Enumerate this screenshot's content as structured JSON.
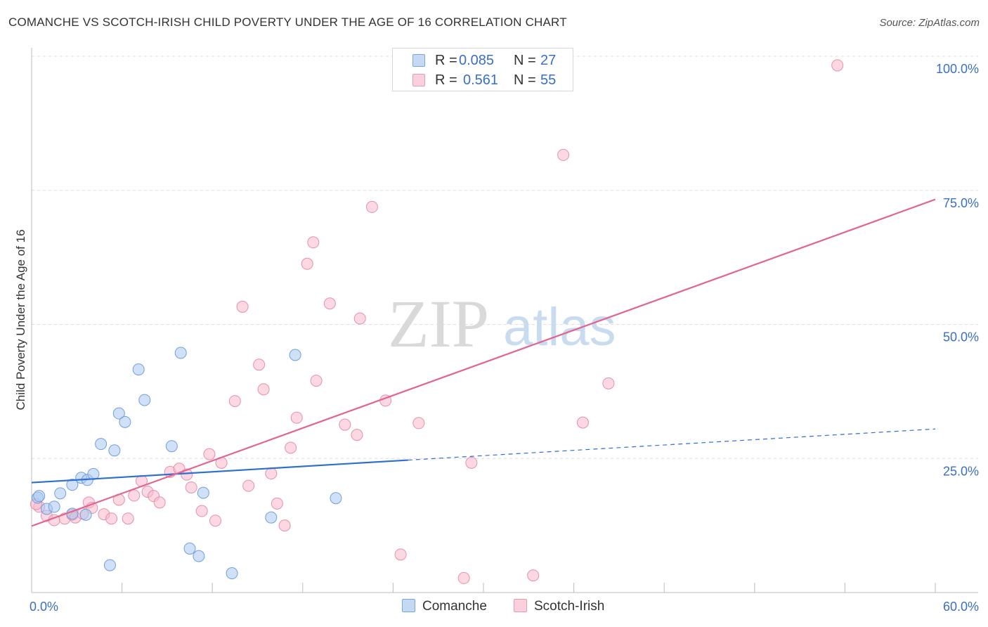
{
  "header": {
    "title": "COMANCHE VS SCOTCH-IRISH CHILD POVERTY UNDER THE AGE OF 16 CORRELATION CHART",
    "source": "Source: ZipAtlas.com"
  },
  "watermark": {
    "zip": "ZIP",
    "atlas": "atlas"
  },
  "legend": {
    "rows": [
      {
        "r_label": "R =",
        "r_value": "0.085",
        "n_label": "N =",
        "n_value": "27",
        "color": "#a9c8f0"
      },
      {
        "r_label": "R =",
        "r_value": "0.561",
        "n_label": "N =",
        "n_value": "55",
        "color": "#f7b8cb"
      }
    ]
  },
  "bottom_legend": {
    "items": [
      {
        "label": "Comanche",
        "color": "#a9c8f0"
      },
      {
        "label": "Scotch-Irish",
        "color": "#f7b8cb"
      }
    ]
  },
  "chart_data": {
    "type": "scatter",
    "title": "COMANCHE VS SCOTCH-IRISH CHILD POVERTY UNDER THE AGE OF 16 CORRELATION CHART",
    "xlabel": "",
    "ylabel": "Child Poverty Under the Age of 16",
    "xlim": [
      0,
      60
    ],
    "ylim": [
      0,
      100
    ],
    "x_tick_labels": {
      "min": "0.0%",
      "max": "60.0%"
    },
    "y_ticks": [
      {
        "value": 25,
        "label": "25.0%"
      },
      {
        "value": 50,
        "label": "50.0%"
      },
      {
        "value": 75,
        "label": "75.0%"
      },
      {
        "value": 100,
        "label": "100.0%"
      }
    ],
    "grid": true,
    "series": [
      {
        "name": "Comanche",
        "color": "#a9c8f0",
        "stroke": "#6f9fdc",
        "line_color": "#2f6fcf",
        "trend": {
          "x0": 0,
          "y0": 20.5,
          "x1": 25.0,
          "y1": 24.7,
          "x_ext": 60,
          "y_ext": 30.5
        },
        "points": [
          [
            0.4,
            17.7
          ],
          [
            1.0,
            15.6
          ],
          [
            1.9,
            18.5
          ],
          [
            2.7,
            14.7
          ],
          [
            2.7,
            20.1
          ],
          [
            3.3,
            21.4
          ],
          [
            3.6,
            14.5
          ],
          [
            3.7,
            21.0
          ],
          [
            4.1,
            22.1
          ],
          [
            4.6,
            27.7
          ],
          [
            5.2,
            5.1
          ],
          [
            5.5,
            26.5
          ],
          [
            5.8,
            33.4
          ],
          [
            6.2,
            31.8
          ],
          [
            7.1,
            41.6
          ],
          [
            7.5,
            35.9
          ],
          [
            9.3,
            27.3
          ],
          [
            9.9,
            44.7
          ],
          [
            10.5,
            8.2
          ],
          [
            11.1,
            6.8
          ],
          [
            11.4,
            18.6
          ],
          [
            13.3,
            3.6
          ],
          [
            15.9,
            14.0
          ],
          [
            17.5,
            44.3
          ],
          [
            20.2,
            17.6
          ],
          [
            0.5,
            18.0
          ],
          [
            1.5,
            16.0
          ]
        ]
      },
      {
        "name": "Scotch-Irish",
        "color": "#f7b8cb",
        "stroke": "#e690ac",
        "line_color": "#e0668f",
        "trend": {
          "x0": 0,
          "y0": 12.4,
          "x1": 60,
          "y1": 73.3
        },
        "points": [
          [
            0.5,
            16.0
          ],
          [
            1.0,
            14.3
          ],
          [
            1.5,
            13.5
          ],
          [
            2.2,
            13.8
          ],
          [
            2.7,
            14.5
          ],
          [
            2.9,
            14.0
          ],
          [
            3.4,
            14.7
          ],
          [
            3.8,
            16.8
          ],
          [
            4.0,
            15.8
          ],
          [
            4.8,
            14.6
          ],
          [
            5.3,
            13.8
          ],
          [
            5.8,
            17.3
          ],
          [
            6.4,
            13.8
          ],
          [
            6.8,
            18.1
          ],
          [
            7.3,
            20.8
          ],
          [
            7.7,
            18.8
          ],
          [
            8.1,
            18.0
          ],
          [
            8.5,
            16.8
          ],
          [
            9.2,
            22.5
          ],
          [
            9.8,
            23.1
          ],
          [
            10.3,
            22.0
          ],
          [
            10.6,
            19.6
          ],
          [
            11.3,
            15.2
          ],
          [
            11.8,
            25.8
          ],
          [
            12.2,
            13.4
          ],
          [
            12.6,
            24.2
          ],
          [
            13.5,
            35.7
          ],
          [
            14.0,
            53.3
          ],
          [
            14.4,
            19.9
          ],
          [
            15.1,
            42.5
          ],
          [
            15.4,
            37.9
          ],
          [
            15.9,
            22.2
          ],
          [
            16.3,
            16.6
          ],
          [
            16.8,
            12.5
          ],
          [
            17.2,
            27.0
          ],
          [
            17.6,
            32.6
          ],
          [
            18.3,
            61.3
          ],
          [
            18.7,
            65.3
          ],
          [
            18.9,
            39.5
          ],
          [
            19.8,
            53.9
          ],
          [
            20.8,
            31.3
          ],
          [
            21.6,
            29.4
          ],
          [
            21.8,
            51.1
          ],
          [
            22.6,
            71.9
          ],
          [
            23.5,
            35.8
          ],
          [
            24.5,
            7.1
          ],
          [
            25.7,
            31.6
          ],
          [
            28.7,
            2.7
          ],
          [
            29.2,
            24.2
          ],
          [
            33.3,
            3.2
          ],
          [
            35.3,
            81.6
          ],
          [
            36.6,
            31.7
          ],
          [
            38.3,
            39.0
          ],
          [
            53.5,
            98.3
          ],
          [
            0.3,
            16.5
          ]
        ]
      }
    ]
  }
}
